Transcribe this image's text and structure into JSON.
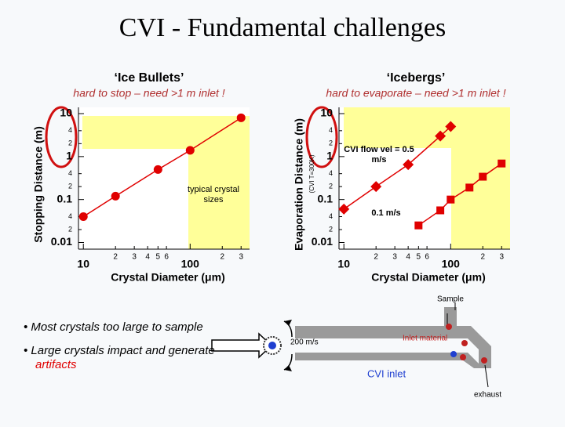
{
  "title": "CVI - Fundamental challenges",
  "chart_data": [
    {
      "type": "scatter",
      "title": "‘Ice Bullets’",
      "subtitle": "hard to stop – need >1 m inlet !",
      "x_label": "Crystal Diameter (μm)",
      "y_label": "Stopping Distance (m)",
      "annotation": "typical crystal sizes",
      "log_x": true,
      "log_y": true,
      "xlim": [
        9,
        360
      ],
      "ylim": [
        0.007,
        14
      ],
      "xticks": [
        10,
        {
          "value": 20,
          "label": "2"
        },
        {
          "value": 30,
          "label": "3"
        },
        {
          "value": 40,
          "label": "4"
        },
        {
          "value": 50,
          "label": "5"
        },
        {
          "value": 60,
          "label": "6"
        },
        100,
        {
          "value": 200,
          "label": "2"
        },
        {
          "value": 300,
          "label": "3"
        }
      ],
      "yticks": [
        0.01,
        {
          "value": 0.02,
          "label": "2"
        },
        {
          "value": 0.04,
          "label": "4"
        },
        0.1,
        {
          "value": 0.2,
          "label": "2"
        },
        {
          "value": 0.4,
          "label": "4"
        },
        1,
        2,
        4,
        10
      ],
      "series": [
        {
          "color": "#e00000",
          "marker": "circle",
          "x": [
            10,
            20,
            50,
            100,
            300
          ],
          "values": [
            0.04,
            0.12,
            0.5,
            1.4,
            8
          ]
        }
      ]
    },
    {
      "type": "scatter",
      "title": "‘Icebergs’",
      "subtitle": "hard to evaporate – need >1 m inlet !",
      "x_label": "Crystal Diameter (μm)",
      "y_label": "Evaporation Distance (m)",
      "y_label_note": "(CVI T=300K)",
      "log_x": true,
      "log_y": true,
      "xlim": [
        9,
        360
      ],
      "ylim": [
        0.007,
        14
      ],
      "xticks": [
        10,
        {
          "value": 20,
          "label": "2"
        },
        {
          "value": 30,
          "label": "3"
        },
        {
          "value": 40,
          "label": "4"
        },
        {
          "value": 50,
          "label": "5"
        },
        {
          "value": 60,
          "label": "6"
        },
        100,
        {
          "value": 200,
          "label": "2"
        },
        {
          "value": 300,
          "label": "3"
        }
      ],
      "yticks": [
        0.01,
        {
          "value": 0.02,
          "label": "2"
        },
        {
          "value": 0.04,
          "label": "4"
        },
        0.1,
        {
          "value": 0.2,
          "label": "2"
        },
        {
          "value": 0.4,
          "label": "4"
        },
        1,
        2,
        4,
        10
      ],
      "series": [
        {
          "name": "CVI flow vel = 0.5 m/s",
          "color": "#e00000",
          "marker": "diamond",
          "x": [
            10,
            20,
            40,
            80,
            100
          ],
          "values": [
            0.06,
            0.2,
            0.65,
            3,
            5
          ]
        },
        {
          "name": "0.1 m/s",
          "color": "#e00000",
          "marker": "square",
          "x": [
            50,
            80,
            100,
            150,
            200,
            300
          ],
          "values": [
            0.025,
            0.056,
            0.1,
            0.19,
            0.34,
            0.69
          ]
        }
      ]
    }
  ],
  "bullets": [
    {
      "text": "Most crystals too large to sample"
    },
    {
      "text": "Large crystals impact and generate",
      "highlight": "artifacts"
    }
  ],
  "diagram": {
    "sample": "Sample",
    "speed": "200 m/s",
    "inlet_material": "Inlet material",
    "inlet": "CVI inlet",
    "exhaust": "exhaust"
  }
}
